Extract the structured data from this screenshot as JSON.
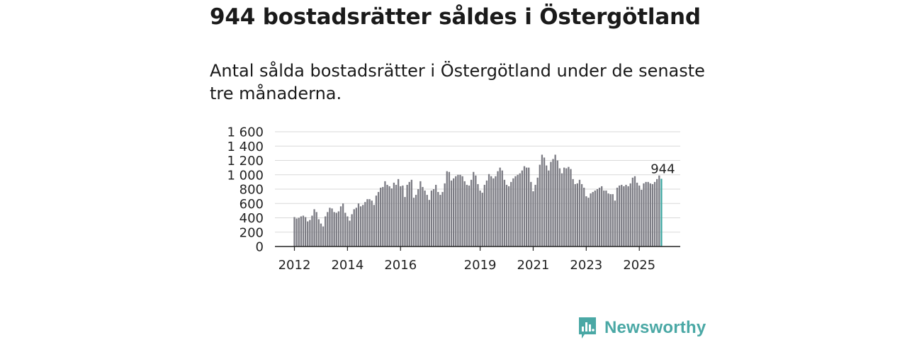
{
  "title": "944 bostadsrätter såldes i Östergötland",
  "subtitle": "Antal sålda bostadsrätter i Östergötland under de senaste tre månaderna.",
  "brand": {
    "name": "Newsworthy",
    "icon": "newsworthy-logo-icon",
    "color": "#4aa8a5"
  },
  "colors": {
    "bar": "#7c7c84",
    "highlight": "#3fa9a3",
    "grid": "#d9d9d9",
    "axis": "#222222"
  },
  "chart_data": {
    "type": "bar",
    "title": "944 bostadsrätter såldes i Östergötland",
    "xlabel": "",
    "ylabel": "",
    "ylim": [
      0,
      1600
    ],
    "y_ticks": [
      0,
      200,
      400,
      600,
      800,
      1000,
      1200,
      1400,
      1600
    ],
    "y_tick_labels": [
      "0",
      "200",
      "400",
      "600",
      "800",
      "1 000",
      "1 200",
      "1 400",
      "1 600"
    ],
    "start": "2012-01",
    "frequency": "monthly",
    "x_ticks": [
      {
        "label": "2012",
        "index": 0
      },
      {
        "label": "2014",
        "index": 24
      },
      {
        "label": "2016",
        "index": 48
      },
      {
        "label": "2019",
        "index": 84
      },
      {
        "label": "2021",
        "index": 108
      },
      {
        "label": "2023",
        "index": 132
      },
      {
        "label": "2025",
        "index": 156
      }
    ],
    "values": [
      410,
      390,
      400,
      420,
      430,
      410,
      350,
      370,
      430,
      520,
      480,
      380,
      320,
      280,
      420,
      480,
      540,
      530,
      480,
      470,
      490,
      560,
      600,
      470,
      420,
      360,
      450,
      520,
      540,
      600,
      560,
      580,
      620,
      660,
      660,
      640,
      580,
      710,
      760,
      820,
      830,
      910,
      860,
      840,
      810,
      890,
      860,
      940,
      840,
      850,
      690,
      860,
      900,
      930,
      680,
      720,
      800,
      910,
      830,
      780,
      720,
      650,
      780,
      800,
      860,
      760,
      720,
      760,
      880,
      1050,
      1040,
      920,
      950,
      980,
      1000,
      1000,
      980,
      910,
      860,
      850,
      930,
      1040,
      990,
      870,
      780,
      750,
      860,
      920,
      1010,
      980,
      950,
      980,
      1050,
      1100,
      1060,
      930,
      860,
      840,
      900,
      950,
      980,
      1000,
      1020,
      1060,
      1120,
      1100,
      1100,
      900,
      770,
      860,
      960,
      1140,
      1280,
      1240,
      1130,
      1060,
      1180,
      1220,
      1280,
      1200,
      1090,
      1020,
      1100,
      1090,
      1110,
      1080,
      940,
      870,
      880,
      930,
      870,
      820,
      700,
      680,
      740,
      760,
      780,
      800,
      820,
      840,
      780,
      780,
      740,
      730,
      730,
      640,
      820,
      850,
      860,
      840,
      860,
      840,
      880,
      960,
      980,
      890,
      850,
      790,
      880,
      900,
      900,
      880,
      870,
      900,
      940,
      990,
      944
    ],
    "highlight": {
      "index": 166,
      "value": 944,
      "label": "944"
    }
  }
}
